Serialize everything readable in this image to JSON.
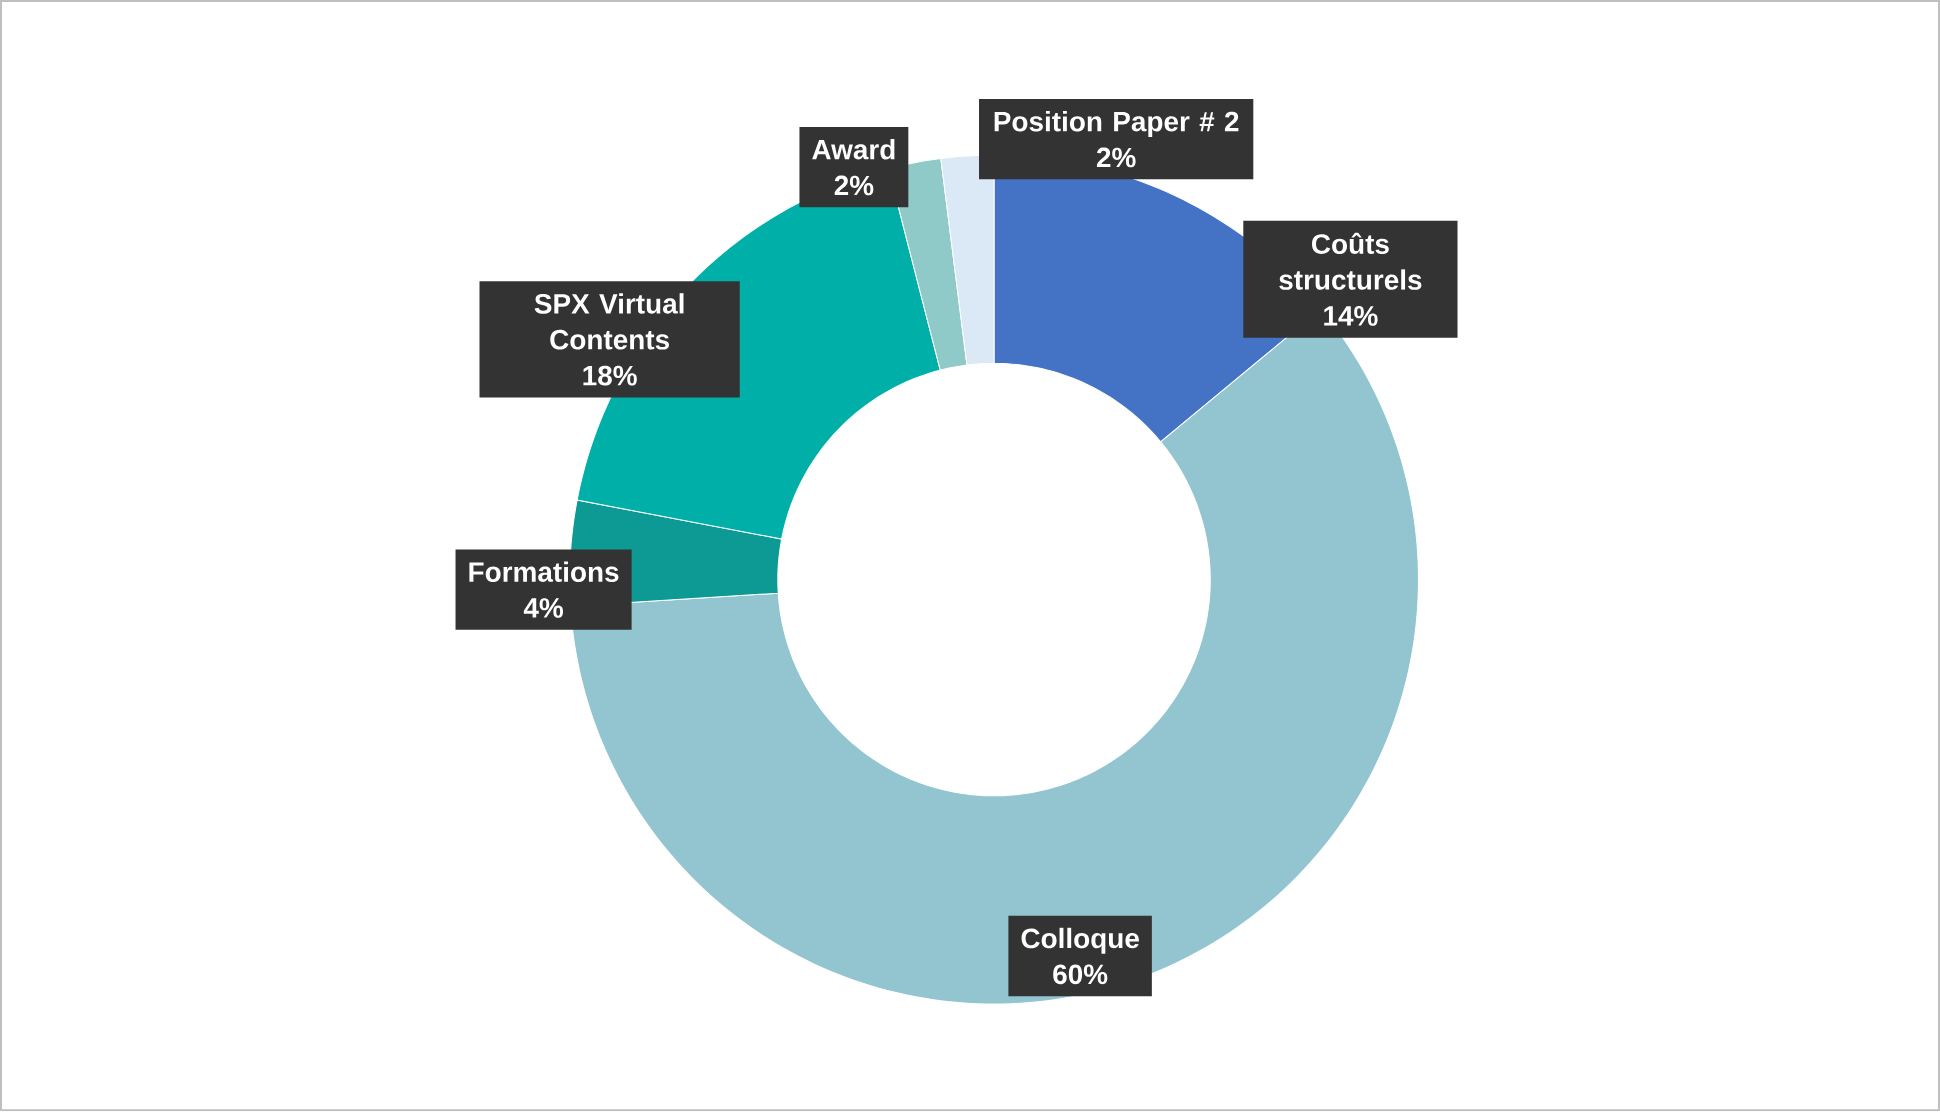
{
  "chart_data": {
    "type": "donut",
    "categories": [
      "Coûts structurels",
      "Colloque",
      "Formations",
      "SPX Virtual Contents",
      "Award",
      "Position Paper # 2"
    ],
    "values": [
      14,
      60,
      4,
      18,
      2,
      2
    ],
    "value_labels": [
      "14%",
      "60%",
      "4%",
      "18%",
      "2%",
      "2%"
    ],
    "colors": [
      "#4472c4",
      "#92c5d0",
      "#0e9a94",
      "#00b0a8",
      "#8fcac8",
      "#dbe8f5"
    ]
  }
}
